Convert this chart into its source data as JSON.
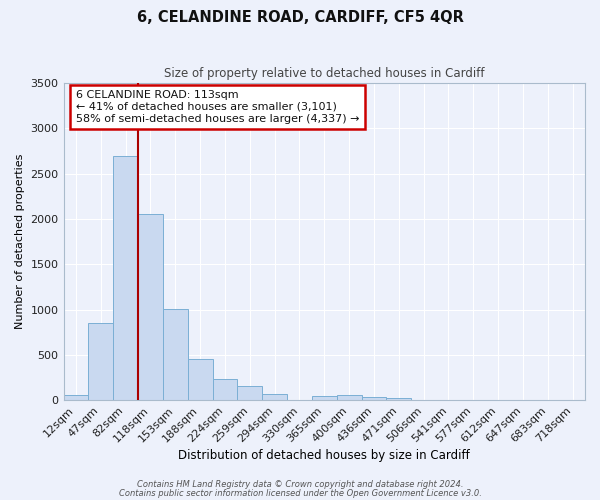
{
  "title": "6, CELANDINE ROAD, CARDIFF, CF5 4QR",
  "subtitle": "Size of property relative to detached houses in Cardiff",
  "xlabel": "Distribution of detached houses by size in Cardiff",
  "ylabel": "Number of detached properties",
  "bar_color": "#c9d9f0",
  "bar_edge_color": "#7bafd4",
  "background_color": "#edf1fb",
  "grid_color": "#ffffff",
  "bin_labels": [
    "12sqm",
    "47sqm",
    "82sqm",
    "118sqm",
    "153sqm",
    "188sqm",
    "224sqm",
    "259sqm",
    "294sqm",
    "330sqm",
    "365sqm",
    "400sqm",
    "436sqm",
    "471sqm",
    "506sqm",
    "541sqm",
    "577sqm",
    "612sqm",
    "647sqm",
    "683sqm",
    "718sqm"
  ],
  "bar_values": [
    55,
    850,
    2700,
    2050,
    1010,
    450,
    235,
    155,
    65,
    0,
    50,
    55,
    35,
    20,
    0,
    0,
    0,
    0,
    0,
    0,
    0
  ],
  "ylim": [
    0,
    3500
  ],
  "yticks": [
    0,
    500,
    1000,
    1500,
    2000,
    2500,
    3000,
    3500
  ],
  "property_line_x": 2.5,
  "annotation_title": "6 CELANDINE ROAD: 113sqm",
  "annotation_line1": "← 41% of detached houses are smaller (3,101)",
  "annotation_line2": "58% of semi-detached houses are larger (4,337) →",
  "annotation_box_color": "#ffffff",
  "annotation_box_edge": "#cc0000",
  "vline_color": "#aa0000",
  "footer1": "Contains HM Land Registry data © Crown copyright and database right 2024.",
  "footer2": "Contains public sector information licensed under the Open Government Licence v3.0."
}
